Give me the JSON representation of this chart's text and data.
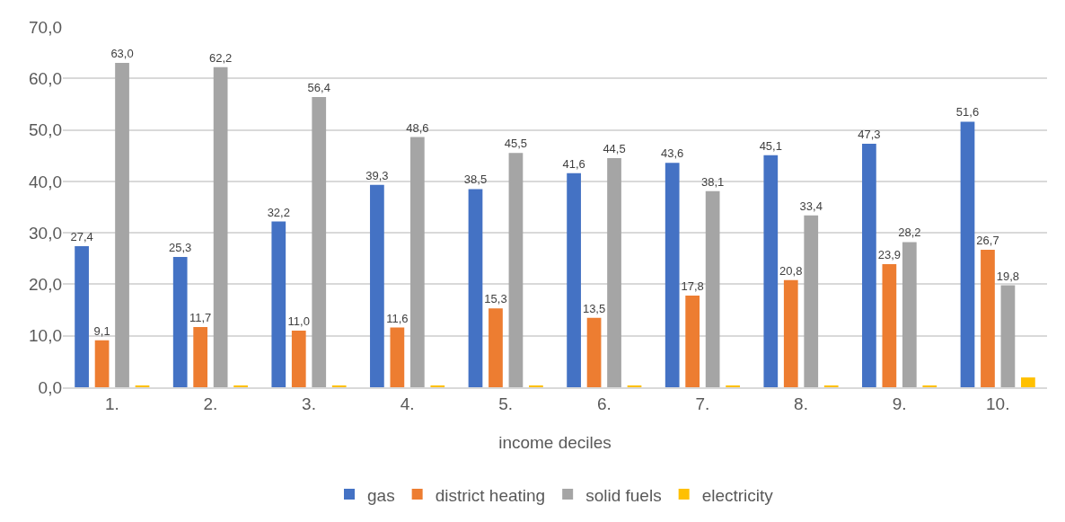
{
  "chart_data": {
    "type": "bar",
    "xlabel": "income deciles",
    "categories": [
      "1.",
      "2.",
      "3.",
      "4.",
      "5.",
      "6.",
      "7.",
      "8.",
      "9.",
      "10."
    ],
    "series": [
      {
        "name": "gas",
        "color": "#4472c4",
        "values": [
          27.4,
          25.3,
          32.2,
          39.3,
          38.5,
          41.6,
          43.6,
          45.1,
          47.3,
          51.6
        ],
        "value_labels": [
          "27,4",
          "25,3",
          "32,2",
          "39,3",
          "38,5",
          "41,6",
          "43,6",
          "45,1",
          "47,3",
          "51,6"
        ]
      },
      {
        "name": "district heating",
        "color": "#ed7d31",
        "values": [
          9.1,
          11.7,
          11.0,
          11.6,
          15.3,
          13.5,
          17.8,
          20.8,
          23.9,
          26.7
        ],
        "value_labels": [
          "9,1",
          "11,7",
          "11,0",
          "11,6",
          "15,3",
          "13,5",
          "17,8",
          "20,8",
          "23,9",
          "26,7"
        ]
      },
      {
        "name": "solid fuels",
        "color": "#a5a5a5",
        "values": [
          63.0,
          62.2,
          56.4,
          48.6,
          45.5,
          44.5,
          38.1,
          33.4,
          28.2,
          19.8
        ],
        "value_labels": [
          "63,0",
          "62,2",
          "56,4",
          "48,6",
          "45,5",
          "44,5",
          "38,1",
          "33,4",
          "28,2",
          "19,8"
        ]
      },
      {
        "name": "electricity",
        "color": "#ffc000",
        "values": [
          0.3,
          0.3,
          0.3,
          0.3,
          0.3,
          0.3,
          0.3,
          0.3,
          0.3,
          1.9
        ]
      }
    ],
    "ylim": [
      0,
      70
    ],
    "yticks": [
      {
        "value": 0,
        "label": "0,0"
      },
      {
        "value": 10,
        "label": "10,0"
      },
      {
        "value": 20,
        "label": "20,0"
      },
      {
        "value": 30,
        "label": "30,0"
      },
      {
        "value": 40,
        "label": "40,0"
      },
      {
        "value": 50,
        "label": "50,0"
      },
      {
        "value": 60,
        "label": "60,0"
      },
      {
        "value": 70,
        "label": "70,0"
      }
    ],
    "grid": "y",
    "legend": "bottom"
  }
}
